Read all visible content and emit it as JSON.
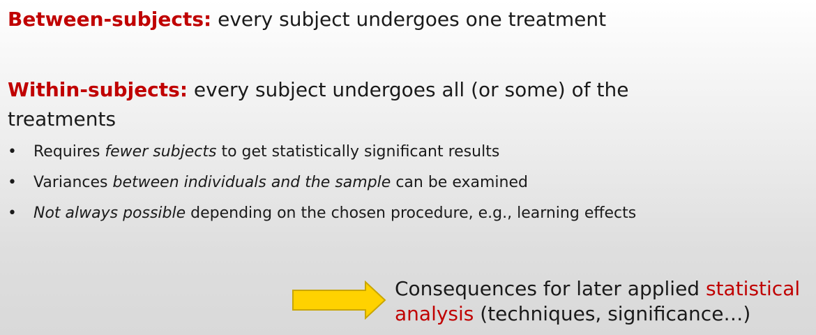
{
  "between": {
    "term": "Between-subjects:",
    "text": " every subject undergoes one treatment"
  },
  "within": {
    "term": "Within-subjects:",
    "text": " every subject undergoes all (or some) of the",
    "continuation": "treatments"
  },
  "bullets": [
    {
      "bullet": "•",
      "pre": "Requires ",
      "italic": "fewer subjects",
      "post": " to get statistically significant results"
    },
    {
      "bullet": "•",
      "pre": "Variances ",
      "italic": "between individuals and the sample",
      "post": " can be examined"
    },
    {
      "bullet": "•",
      "pre": "",
      "italic": "Not always possible",
      "post": " depending on the chosen procedure, e.g., learning effects"
    }
  ],
  "consequence": {
    "line1_plain": "Consequences for later applied ",
    "line1_accent": "statistical",
    "line2_accent": "analysis",
    "line2_plain": " (techniques, significance…)"
  },
  "colors": {
    "accent": "#c00000",
    "arrow_fill": "#ffd200",
    "arrow_stroke": "#c9a600"
  },
  "icons": {
    "arrow": "right-arrow-icon"
  }
}
